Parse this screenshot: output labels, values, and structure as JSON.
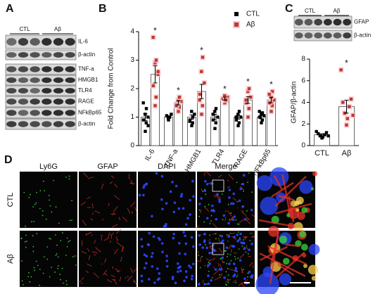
{
  "panel_labels": [
    "A",
    "B",
    "C",
    "D"
  ],
  "blot_a": {
    "groups": [
      "CTL",
      "Aβ"
    ],
    "bands": [
      "IL-6",
      "β-actin",
      "TNF-a",
      "HMGB1",
      "TLR4",
      "RAGE",
      "NFkBp65",
      "β-actin"
    ]
  },
  "blot_c": {
    "groups": [
      "CTL",
      "Aβ"
    ],
    "bands": [
      "GFAP",
      "β-actin"
    ]
  },
  "chart_data": [
    {
      "type": "bar",
      "ylabel": "Fold Change from Control",
      "categories": [
        "IL-6",
        "TNF-a",
        "HMGB1",
        "TLR4",
        "RAGE",
        "NFkBp65"
      ],
      "ylim": [
        0,
        4
      ],
      "yticks": [
        0,
        1,
        2,
        3,
        4
      ],
      "annotations": [
        "*",
        "*",
        "*",
        "*",
        "*",
        "*"
      ],
      "legend": "top-right",
      "series": [
        {
          "name": "CTL",
          "color": "#000000",
          "values": [
            1.0,
            1.0,
            1.0,
            1.0,
            1.0,
            1.0
          ],
          "errors": [
            0.12,
            0.04,
            0.08,
            0.1,
            0.07,
            0.06
          ],
          "points": [
            [
              0.5,
              0.8,
              0.9,
              1.0,
              1.1,
              1.3,
              1.5,
              0.7
            ],
            [
              0.9,
              1.0,
              1.05,
              1.1,
              0.95,
              1.0
            ],
            [
              0.7,
              0.8,
              0.9,
              1.1,
              1.2,
              1.0,
              0.85
            ],
            [
              0.6,
              0.8,
              0.9,
              1.0,
              1.2,
              1.3,
              1.1
            ],
            [
              0.7,
              0.8,
              0.9,
              1.0,
              1.1,
              1.2,
              1.0
            ],
            [
              0.8,
              0.9,
              1.0,
              1.05,
              1.1,
              1.15,
              1.2
            ]
          ]
        },
        {
          "name": "Aβ",
          "color": "#c0392b",
          "values": [
            2.5,
            1.5,
            1.9,
            1.65,
            1.6,
            1.6
          ],
          "errors": [
            0.3,
            0.07,
            0.25,
            0.05,
            0.12,
            0.1
          ],
          "points": [
            [
              1.4,
              1.7,
              2.1,
              2.5,
              2.9,
              3.0,
              3.8,
              2.6
            ],
            [
              1.2,
              1.35,
              1.45,
              1.55,
              1.6,
              1.7,
              1.4
            ],
            [
              1.1,
              1.4,
              1.8,
              2.2,
              2.6,
              3.1,
              1.6
            ],
            [
              1.5,
              1.6,
              1.65,
              1.7,
              1.75,
              1.6
            ],
            [
              1.0,
              1.3,
              1.5,
              1.7,
              1.9,
              2.0,
              1.6
            ],
            [
              1.2,
              1.4,
              1.5,
              1.6,
              1.7,
              1.9,
              1.8
            ]
          ]
        }
      ]
    },
    {
      "type": "bar",
      "ylabel": "GFAP/β-actin",
      "categories": [
        "CTL",
        "Aβ"
      ],
      "values": [
        1.0,
        3.6
      ],
      "errors": [
        0.1,
        0.6
      ],
      "point_colors": [
        "#000000",
        "#c0392b"
      ],
      "points": [
        [
          0.7,
          0.8,
          0.9,
          1.0,
          1.1,
          1.2,
          1.3,
          0.9
        ],
        [
          1.9,
          2.5,
          3.0,
          3.6,
          4.0,
          4.3,
          7.0,
          2.8
        ]
      ],
      "annotations": [
        null,
        "*"
      ],
      "ylim": [
        0,
        8
      ],
      "yticks": [
        0,
        2,
        4,
        6,
        8
      ]
    }
  ],
  "imaging": {
    "columns": [
      {
        "label": "Ly6G",
        "color": "#3aa635"
      },
      {
        "label": "GFAP",
        "color": "#d9342b"
      },
      {
        "label": "DAPI",
        "color": "#2b3fd1"
      },
      {
        "label": "Merge",
        "color": "#222222"
      }
    ],
    "rows": [
      "CTL",
      "Aβ"
    ]
  }
}
